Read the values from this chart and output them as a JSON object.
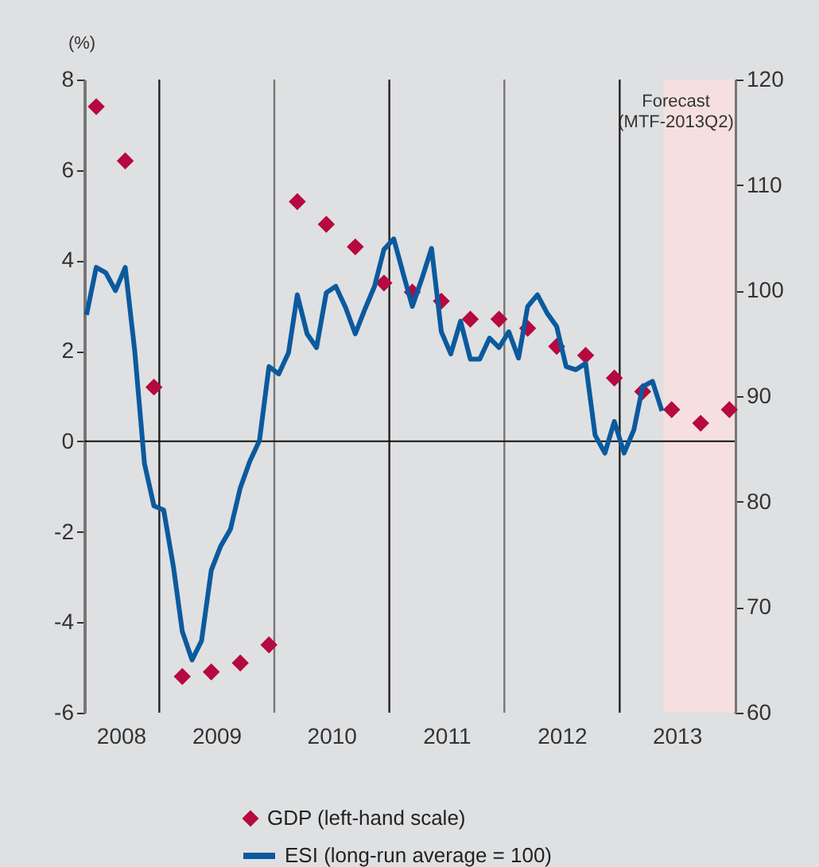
{
  "chart_data": {
    "type": "scatter",
    "ylabel": "(%)",
    "xlim": [
      "2008-05-08",
      "2014-01-01"
    ],
    "xticks": [
      {
        "value": "2008-09-01",
        "label": "2008"
      },
      {
        "value": "2009-07-01",
        "label": "2009"
      },
      {
        "value": "2010-07-01",
        "label": "2010"
      },
      {
        "value": "2011-07-01",
        "label": "2011"
      },
      {
        "value": "2012-07-01",
        "label": "2012"
      },
      {
        "value": "2013-07-01",
        "label": "2013"
      }
    ],
    "ylim": [
      -6,
      8
    ],
    "yticks": [
      -6,
      -4,
      -2,
      0,
      2,
      4,
      6,
      8
    ],
    "y2lim": [
      60,
      120
    ],
    "y2ticks": [
      60,
      70,
      80,
      90,
      100,
      110,
      120
    ],
    "grid": false,
    "legend": "bottom",
    "series": [
      {
        "name": "GDP (left-hand scale)",
        "marker": "diamond",
        "color": "#b5093f",
        "x": [
          "2008-06-15",
          "2008-09-15",
          "2008-12-15",
          "2009-03-15",
          "2009-06-15",
          "2009-09-15",
          "2009-12-15",
          "2010-03-15",
          "2010-06-15",
          "2010-09-15",
          "2010-12-15",
          "2011-03-15",
          "2011-06-15",
          "2011-09-15",
          "2011-12-15",
          "2012-03-15",
          "2012-06-15",
          "2012-09-15",
          "2012-12-15",
          "2013-03-15",
          "2013-06-15",
          "2013-09-15",
          "2013-12-15"
        ],
        "values": [
          7.4,
          6.2,
          1.2,
          -5.2,
          -5.1,
          -4.9,
          -4.5,
          5.3,
          4.8,
          4.3,
          3.5,
          3.3,
          3.1,
          2.7,
          2.7,
          2.5,
          2.1,
          1.9,
          1.4,
          1.1,
          0.7,
          0.4,
          0.7
        ]
      },
      {
        "name": "ESI (long-run average = 100)",
        "type": "line",
        "axis": "y2",
        "color": "#0b5a9e",
        "line_style": "solid",
        "marker": "none",
        "x": [
          "2008-05-15",
          "2008-06-15",
          "2008-07-15",
          "2008-08-15",
          "2008-09-15",
          "2008-10-15",
          "2008-11-15",
          "2008-12-15",
          "2009-01-15",
          "2009-02-15",
          "2009-03-15",
          "2009-04-15",
          "2009-05-15",
          "2009-06-15",
          "2009-07-15",
          "2009-08-15",
          "2009-09-15",
          "2009-10-15",
          "2009-11-15",
          "2009-12-15",
          "2010-01-15",
          "2010-02-15",
          "2010-03-15",
          "2010-04-15",
          "2010-05-15",
          "2010-06-15",
          "2010-07-15",
          "2010-08-15",
          "2010-09-15",
          "2010-10-15",
          "2010-11-15",
          "2010-12-15",
          "2011-01-15",
          "2011-02-15",
          "2011-03-15",
          "2011-04-15",
          "2011-05-15",
          "2011-06-15",
          "2011-07-15",
          "2011-08-15",
          "2011-09-15",
          "2011-10-15",
          "2011-11-15",
          "2011-12-15",
          "2012-01-15",
          "2012-02-15",
          "2012-03-15",
          "2012-04-15",
          "2012-05-15",
          "2012-06-15",
          "2012-07-15",
          "2012-08-15",
          "2012-09-15",
          "2012-10-15",
          "2012-11-15",
          "2012-12-15",
          "2013-01-15",
          "2013-02-15",
          "2013-03-15",
          "2013-04-15",
          "2013-05-15"
        ],
        "values": [
          97.7,
          102.2,
          101.7,
          100.0,
          102.2,
          94.3,
          83.6,
          79.6,
          79.2,
          73.8,
          67.7,
          65.0,
          66.8,
          73.5,
          75.8,
          77.4,
          81.3,
          83.8,
          85.8,
          92.8,
          92.1,
          94.1,
          99.6,
          95.9,
          94.6,
          99.8,
          100.4,
          98.4,
          95.9,
          98.2,
          100.4,
          103.9,
          104.9,
          101.5,
          98.5,
          101.2,
          104.0,
          96.1,
          94.0,
          97.1,
          93.5,
          93.5,
          95.5,
          94.6,
          96.1,
          93.6,
          98.5,
          99.6,
          97.9,
          96.6,
          92.8,
          92.5,
          93.1,
          86.3,
          84.6,
          87.6,
          84.6,
          86.8,
          90.9,
          91.4,
          88.6
        ]
      }
    ],
    "ref_lines": [
      {
        "axis": "x",
        "value": "2009-01-01",
        "color": "#222222"
      },
      {
        "axis": "x",
        "value": "2010-01-01",
        "color": "#777777"
      },
      {
        "axis": "x",
        "value": "2011-01-01",
        "color": "#222222"
      },
      {
        "axis": "x",
        "value": "2012-01-01",
        "color": "#777777"
      },
      {
        "axis": "x",
        "value": "2013-01-01",
        "color": "#222222"
      },
      {
        "axis": "y",
        "value": 0,
        "color": "#111111"
      }
    ],
    "bands": [
      {
        "axis": "x",
        "from": "2013-05-20",
        "to": "2014-01-01",
        "label": "Forecast\n(MTF-2013Q2)",
        "color": "#f5dfdf"
      }
    ]
  }
}
